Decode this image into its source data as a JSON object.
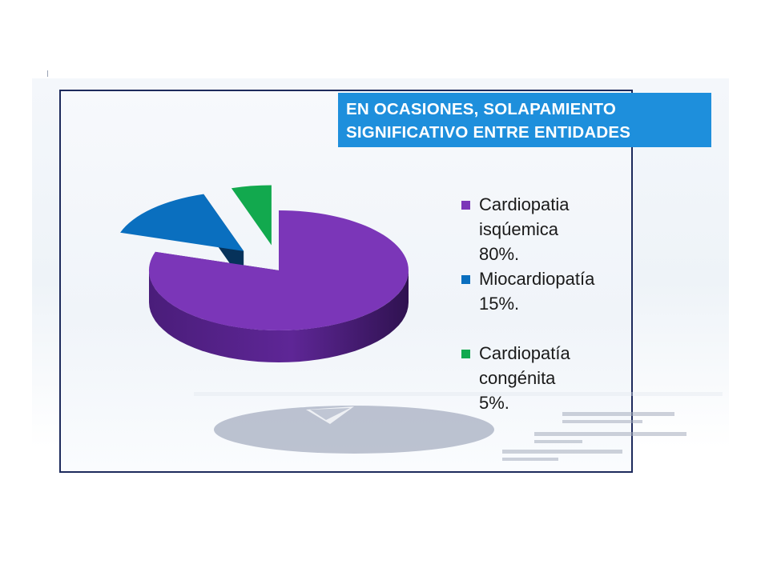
{
  "title": {
    "line1": "EN OCASIONES, SOLAPAMIENTO",
    "line2": "SIGNIFICATIVO ENTRE ENTIDADES"
  },
  "legend": [
    {
      "lines": [
        "Cardiopatia",
        "isqúemica",
        "80%."
      ]
    },
    {
      "lines": [
        "Miocardiopatía",
        "15%."
      ]
    },
    {
      "lines": [
        "Cardiopatía",
        "congénita",
        "5%."
      ]
    }
  ],
  "chart_data": {
    "type": "pie",
    "style": "3d-exploded",
    "categories": [
      "Cardiopatia isqúemica",
      "Miocardiopatía",
      "Cardiopatía congénita"
    ],
    "values": [
      80,
      15,
      5
    ],
    "colors": [
      "#7b36b8",
      "#0a6fbf",
      "#12a94e"
    ],
    "legend_position": "right"
  }
}
